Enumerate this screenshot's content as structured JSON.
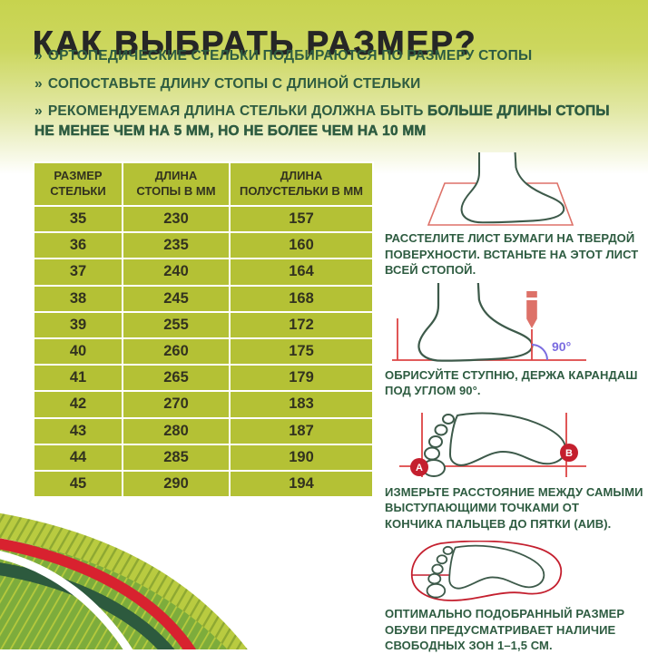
{
  "page_title": "КАК ВЫБРАТЬ РАЗМЕР?",
  "intro_bullets": [
    {
      "marker": "»",
      "text": "ОРТОПЕДИЧЕСКИЕ СТЕЛЬКИ ПОДБИРАЮТСЯ ПО РАЗМЕРУ СТОПЫ"
    },
    {
      "marker": "»",
      "text": "СОПОСТАВЬТЕ ДЛИНУ СТОПЫ С ДЛИНОЙ СТЕЛЬКИ"
    },
    {
      "marker": "»",
      "text": "РЕКОМЕНДУЕМАЯ ДЛИНА СТЕЛЬКИ ДОЛЖНА БЫТЬ ",
      "text_emphasis": "БОЛЬШЕ ДЛИНЫ СТОПЫ НЕ МЕНЕЕ ЧЕМ НА 5 ММ, НО НЕ БОЛЕЕ ЧЕМ НА 10 ММ"
    }
  ],
  "size_table": {
    "headers": [
      "РАЗМЕР\nСТЕЛЬКИ",
      "ДЛИНА\nСТОПЫ В ММ",
      "ДЛИНА\nПОЛУСТЕЛЬКИ В ММ"
    ],
    "rows": [
      [
        "35",
        "230",
        "157"
      ],
      [
        "36",
        "235",
        "160"
      ],
      [
        "37",
        "240",
        "164"
      ],
      [
        "38",
        "245",
        "168"
      ],
      [
        "39",
        "255",
        "172"
      ],
      [
        "40",
        "260",
        "175"
      ],
      [
        "41",
        "265",
        "179"
      ],
      [
        "42",
        "270",
        "183"
      ],
      [
        "43",
        "280",
        "187"
      ],
      [
        "44",
        "285",
        "190"
      ],
      [
        "45",
        "290",
        "194"
      ]
    ]
  },
  "instructions": [
    {
      "illustration": "foot-standing-on-paper",
      "text": "РАССТЕЛИТЕ ЛИСТ БУМАГИ НА ТВЕРДОЙ\nПОВЕРХНОСТИ. ВСТАНЬТЕ НА ЭТОТ ЛИСТ\nВСЕЙ СТОПОЙ."
    },
    {
      "illustration": "foot-outline-with-pencil",
      "angle_label": "90°",
      "text": "ОБРИСУЙТЕ СТУПНЮ, ДЕРЖА КАРАНДАШ\nПОД УГЛОМ 90°."
    },
    {
      "illustration": "footprint-measure-points",
      "point_a": "А",
      "point_b": "В",
      "text": "ИЗМЕРЬТЕ РАССТОЯНИЕ МЕЖДУ САМЫМИ\nВЫСТУПАЮЩИМИ ТОЧКАМИ ОТ\nКОНЧИКА ПАЛЬЦЕВ ДО ПЯТКИ (АИВ)."
    },
    {
      "illustration": "footprint-inside-insole",
      "text": "ОПТИМАЛЬНО ПОДОБРАННЫЙ РАЗМЕР\nОБУВИ ПРЕДУСМАТРИВАЕТ НАЛИЧИЕ\nСВОБОДНЫХ ЗОН 1–1,5 СМ."
    }
  ],
  "colors": {
    "header_gradient_top": "#c7d34e",
    "table_cell_bg": "#b4c135",
    "dark_green_text": "#2e5c41",
    "title_text": "#262626",
    "foot_outline": "#3d5a4a",
    "marker_red": "#c41f2e",
    "line_red": "#dd4444",
    "paper_red": "#dd7168",
    "angle_purple": "#7b6ce0",
    "swoosh_red": "#d8222f",
    "swoosh_dark_green": "#2d5a3e",
    "swoosh_light_green": "#b9cb40",
    "swoosh_mid_green": "#7dac3c"
  }
}
